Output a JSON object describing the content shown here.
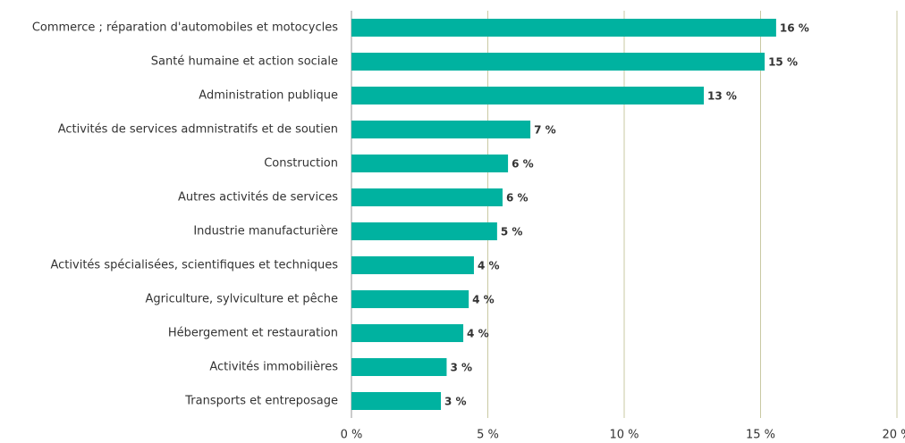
{
  "chart_data": {
    "type": "hbar",
    "categories": [
      "Commerce ; réparation d'automobiles et motocycles",
      "Santé humaine et action sociale",
      "Administration publique",
      "Activités de services admnistratifs et de soutien",
      "Construction",
      "Autres activités de services",
      "Industrie manufacturière",
      "Activités spécialisées, scientifiques et techniques",
      "Agriculture, sylviculture et pêche ",
      "Hébergement et restauration",
      "Activités immobilières",
      "Transports et entreposage"
    ],
    "values": [
      15.57,
      15.15,
      12.92,
      6.56,
      5.74,
      5.54,
      5.34,
      4.49,
      4.3,
      4.1,
      3.49,
      3.28
    ],
    "value_labels": [
      "16 %",
      "15 %",
      "13 %",
      "7 %",
      "6 %",
      "6 %",
      "5 %",
      "4 %",
      "4 %",
      "4 %",
      "3 %",
      "3 %"
    ],
    "color": "#00b2a0",
    "xlim": [
      0,
      20
    ],
    "xticks": [
      {
        "value": 0,
        "label": "0 %"
      },
      {
        "value": 5,
        "label": "5 %"
      },
      {
        "value": 10,
        "label": "10 %"
      },
      {
        "value": 15,
        "label": "15 %"
      },
      {
        "value": 20,
        "label": "20 %"
      }
    ],
    "grid": true
  }
}
